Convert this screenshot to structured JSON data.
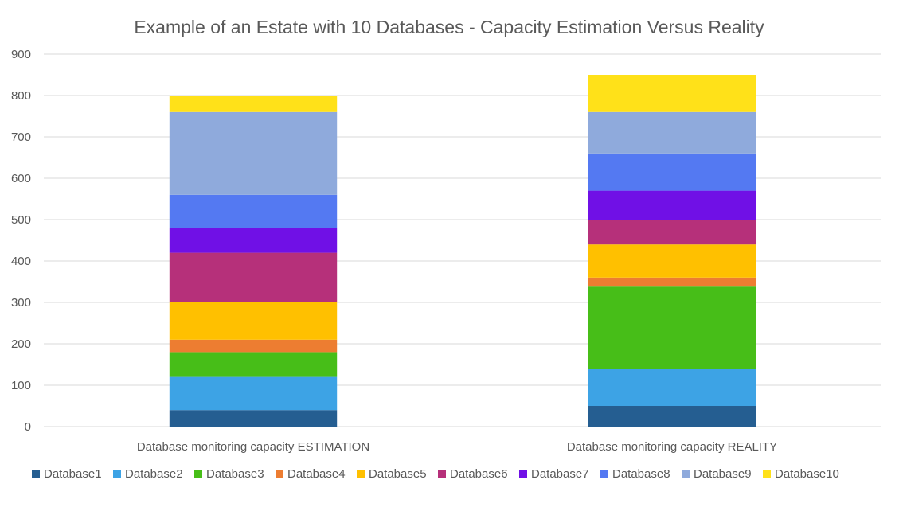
{
  "chart_data": {
    "type": "bar",
    "stacked": true,
    "title": "Example of an Estate with 10 Databases - Capacity Estimation Versus Reality",
    "xlabel": "",
    "ylabel": "",
    "ylim": [
      0,
      900
    ],
    "yticks": [
      0,
      100,
      200,
      300,
      400,
      500,
      600,
      700,
      800,
      900
    ],
    "grid": true,
    "legend": "bottom",
    "categories": [
      "Database monitoring capacity ESTIMATION",
      "Database monitoring capacity REALITY"
    ],
    "series": [
      {
        "name": "Database1",
        "color": "#255E91",
        "values": [
          40,
          50
        ]
      },
      {
        "name": "Database2",
        "color": "#3DA3E5",
        "values": [
          80,
          90
        ]
      },
      {
        "name": "Database3",
        "color": "#47BE18",
        "values": [
          60,
          200
        ]
      },
      {
        "name": "Database4",
        "color": "#ED7D31",
        "values": [
          30,
          20
        ]
      },
      {
        "name": "Database5",
        "color": "#FFC000",
        "values": [
          90,
          80
        ]
      },
      {
        "name": "Database6",
        "color": "#B6307A",
        "values": [
          120,
          60
        ]
      },
      {
        "name": "Database7",
        "color": "#7010E6",
        "values": [
          60,
          70
        ]
      },
      {
        "name": "Database8",
        "color": "#5479F2",
        "values": [
          80,
          90
        ]
      },
      {
        "name": "Database9",
        "color": "#8FAADC",
        "values": [
          200,
          100
        ]
      },
      {
        "name": "Database10",
        "color": "#FFE119",
        "values": [
          40,
          90
        ]
      }
    ]
  }
}
